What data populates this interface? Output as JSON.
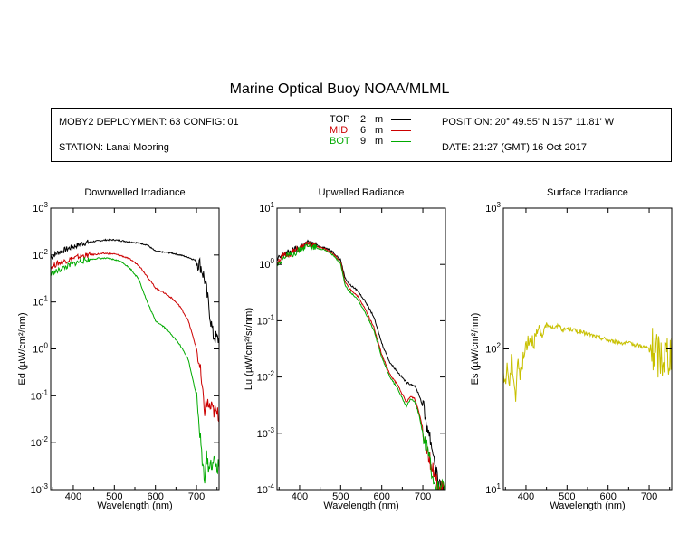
{
  "title": "Marine Optical Buoy NOAA/MLML",
  "info": {
    "deployment": "MOBY2 DEPLOYMENT: 63 CONFIG: 01",
    "station": "STATION: Lanai Mooring",
    "position": "POSITION: 20° 49.55' N   157° 11.81' W",
    "date": "DATE: 21:27 (GMT) 16 Oct 2017",
    "depths": [
      {
        "label": "TOP",
        "depth": "2",
        "unit": "m",
        "color": "#000000"
      },
      {
        "label": "MID",
        "depth": "6",
        "unit": "m",
        "color": "#cc0000"
      },
      {
        "label": "BOT",
        "depth": "9",
        "unit": "m",
        "color": "#00aa00"
      }
    ]
  },
  "chart_data": [
    {
      "type": "line",
      "title": "Downwelled Irradiance",
      "xlabel": "Wavelength (nm)",
      "ylabel": "Ed  (µW/cm²/nm)",
      "xlim": [
        345,
        755
      ],
      "ylim": [
        0.001,
        1000
      ],
      "yscale": "log",
      "xticks": [
        400,
        500,
        600,
        700
      ],
      "yticks": [
        {
          "v": 0.001,
          "e": "-3"
        },
        {
          "v": 0.01,
          "e": "-2"
        },
        {
          "v": 0.1,
          "e": "-1"
        },
        {
          "v": 1,
          "e": "0"
        },
        {
          "v": 10,
          "e": "1"
        },
        {
          "v": 100,
          "e": "2"
        },
        {
          "v": 1000,
          "e": "3"
        }
      ],
      "series": [
        {
          "name": "TOP",
          "color": "#000000",
          "x": [
            345,
            360,
            380,
            400,
            420,
            440,
            460,
            480,
            500,
            520,
            540,
            560,
            580,
            600,
            620,
            640,
            660,
            680,
            700,
            710,
            720,
            730,
            740,
            750
          ],
          "y": [
            90,
            110,
            130,
            150,
            175,
            190,
            200,
            210,
            210,
            200,
            190,
            180,
            165,
            120,
            115,
            110,
            100,
            90,
            75,
            60,
            30,
            8,
            2,
            1.6
          ]
        },
        {
          "name": "MID",
          "color": "#cc0000",
          "x": [
            345,
            360,
            380,
            400,
            420,
            440,
            460,
            480,
            500,
            520,
            540,
            560,
            580,
            600,
            620,
            640,
            660,
            680,
            700,
            710,
            715,
            720,
            725,
            730,
            740,
            750
          ],
          "y": [
            55,
            65,
            75,
            85,
            95,
            100,
            105,
            108,
            105,
            95,
            80,
            60,
            35,
            20,
            16,
            12,
            8,
            4,
            1,
            0.3,
            0.1,
            0.05,
            0.07,
            0.06,
            0.05,
            0.04
          ]
        },
        {
          "name": "BOT",
          "color": "#00aa00",
          "x": [
            345,
            360,
            380,
            400,
            420,
            440,
            460,
            480,
            500,
            520,
            540,
            560,
            580,
            600,
            620,
            640,
            660,
            680,
            700,
            710,
            715,
            720,
            725,
            730,
            740,
            750
          ],
          "y": [
            40,
            45,
            55,
            65,
            75,
            80,
            85,
            85,
            80,
            70,
            50,
            30,
            10,
            4,
            3,
            2,
            1.2,
            0.6,
            0.1,
            0.01,
            0.003,
            0.002,
            0.005,
            0.003,
            0.004,
            0.003
          ]
        }
      ]
    },
    {
      "type": "line",
      "title": "Upwelled Radiance",
      "xlabel": "Wavelength (nm)",
      "ylabel": "Lu  (µW/cm²/sr/nm)",
      "xlim": [
        345,
        755
      ],
      "ylim": [
        0.0001,
        10
      ],
      "yscale": "log",
      "xticks": [
        400,
        500,
        600,
        700
      ],
      "yticks": [
        {
          "v": 0.0001,
          "e": "-4"
        },
        {
          "v": 0.001,
          "e": "-3"
        },
        {
          "v": 0.01,
          "e": "-2"
        },
        {
          "v": 0.1,
          "e": "-1"
        },
        {
          "v": 1,
          "e": "0"
        },
        {
          "v": 10,
          "e": "1"
        }
      ],
      "series": [
        {
          "name": "TOP",
          "color": "#000000",
          "x": [
            345,
            360,
            380,
            400,
            420,
            440,
            460,
            480,
            500,
            510,
            520,
            540,
            560,
            580,
            600,
            620,
            640,
            660,
            670,
            680,
            690,
            700,
            720,
            730,
            740,
            750
          ],
          "y": [
            1.2,
            1.5,
            1.7,
            2.0,
            2.4,
            2.2,
            2.0,
            1.7,
            1.2,
            0.6,
            0.45,
            0.35,
            0.22,
            0.12,
            0.04,
            0.018,
            0.012,
            0.008,
            0.0075,
            0.007,
            0.005,
            0.003,
            0.0007,
            0.0003,
            0.0001,
            0.0001
          ]
        },
        {
          "name": "MID",
          "color": "#cc0000",
          "x": [
            345,
            360,
            380,
            400,
            420,
            440,
            460,
            480,
            500,
            510,
            520,
            540,
            560,
            580,
            600,
            620,
            640,
            660,
            670,
            680,
            690,
            700,
            720,
            730,
            740,
            750
          ],
          "y": [
            1.1,
            1.4,
            1.6,
            1.9,
            2.3,
            2.1,
            1.9,
            1.6,
            1.1,
            0.5,
            0.38,
            0.28,
            0.16,
            0.08,
            0.025,
            0.011,
            0.007,
            0.0035,
            0.0045,
            0.0042,
            0.0025,
            0.0012,
            0.0003,
            0.00015,
            0.0001,
            0.0001
          ]
        },
        {
          "name": "BOT",
          "color": "#00aa00",
          "x": [
            345,
            360,
            380,
            400,
            420,
            440,
            460,
            480,
            500,
            510,
            520,
            540,
            560,
            580,
            600,
            620,
            640,
            660,
            670,
            680,
            690,
            700,
            720,
            730,
            740,
            750
          ],
          "y": [
            1.0,
            1.3,
            1.5,
            1.8,
            2.2,
            2.0,
            1.8,
            1.5,
            1.0,
            0.45,
            0.34,
            0.25,
            0.14,
            0.07,
            0.022,
            0.01,
            0.006,
            0.003,
            0.004,
            0.0038,
            0.0022,
            0.001,
            0.00025,
            0.00012,
            0.0001,
            0.0001
          ]
        }
      ]
    },
    {
      "type": "line",
      "title": "Surface Irradiance",
      "xlabel": "Wavelength (nm)",
      "ylabel": "Es  (µW/cm²/nm)",
      "xlim": [
        345,
        755
      ],
      "ylim": [
        10,
        1000
      ],
      "yscale": "log",
      "xticks": [
        400,
        500,
        600,
        700
      ],
      "yticks": [
        {
          "v": 10,
          "e": "1"
        },
        {
          "v": 100,
          "e": "2"
        },
        {
          "v": 1000,
          "e": "3"
        }
      ],
      "series": [
        {
          "name": "Es",
          "color": "#c8c000",
          "x": [
            350,
            355,
            360,
            365,
            370,
            375,
            380,
            385,
            390,
            395,
            400,
            410,
            420,
            430,
            440,
            450,
            460,
            470,
            480,
            490,
            500,
            510,
            520,
            530,
            540,
            550,
            560,
            570,
            580,
            590,
            600,
            620,
            640,
            660,
            680,
            700,
            710,
            720,
            730,
            740,
            750
          ],
          "y": [
            60,
            75,
            55,
            85,
            65,
            45,
            90,
            60,
            80,
            85,
            110,
            120,
            115,
            130,
            125,
            150,
            145,
            140,
            148,
            135,
            140,
            138,
            135,
            132,
            130,
            128,
            125,
            122,
            120,
            118,
            115,
            112,
            110,
            108,
            105,
            100,
            95,
            90,
            88,
            92,
            96
          ]
        }
      ]
    }
  ]
}
